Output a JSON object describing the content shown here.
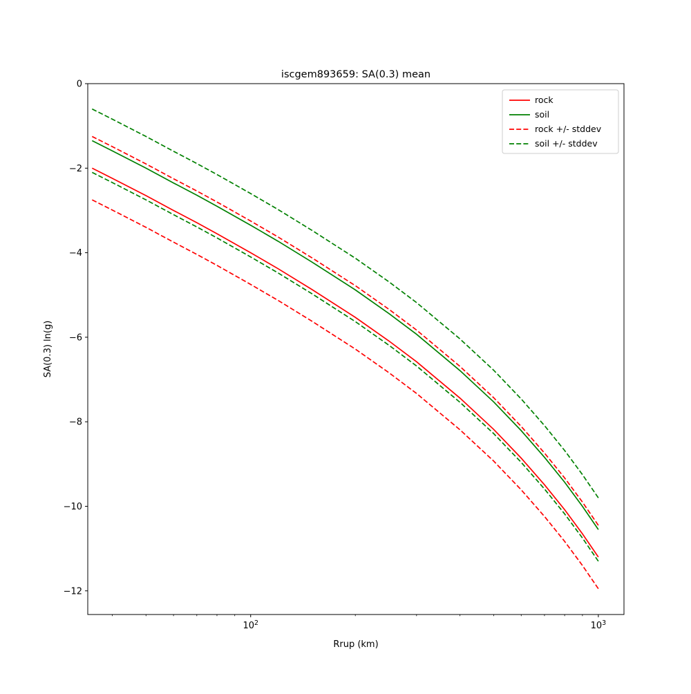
{
  "figure": {
    "title": "iscgem893659: SA(0.3) mean"
  },
  "chart_data": {
    "type": "line",
    "title": "iscgem893659: SA(0.3) mean",
    "xlabel": "Rrup (km)",
    "ylabel": "SA(0.3) ln(g)",
    "x_scale": "log",
    "xlim": [
      34,
      1185
    ],
    "ylim": [
      -12.56,
      0
    ],
    "grid": false,
    "yticks": [
      0,
      -2,
      -4,
      -6,
      -8,
      -10,
      -12
    ],
    "ytick_labels": [
      "0",
      "−2",
      "−4",
      "−6",
      "−8",
      "−10",
      "−12"
    ],
    "xticks": [
      {
        "value": 100,
        "base": "10",
        "exp": "2"
      },
      {
        "value": 1000,
        "base": "10",
        "exp": "3"
      }
    ],
    "x_minor_ticks": [
      40,
      50,
      60,
      70,
      80,
      90,
      200,
      300,
      400,
      500,
      600,
      700,
      800,
      900
    ],
    "x": [
      35,
      40,
      50,
      60,
      70,
      80,
      100,
      120,
      150,
      200,
      250,
      300,
      400,
      500,
      600,
      700,
      800,
      900,
      1000
    ],
    "series": [
      {
        "name": "rock",
        "color": "#ff0000",
        "style": "solid",
        "values": [
          -2.0,
          -2.24,
          -2.65,
          -3.0,
          -3.29,
          -3.55,
          -4.0,
          -4.38,
          -4.87,
          -5.53,
          -6.09,
          -6.58,
          -7.44,
          -8.18,
          -8.86,
          -9.49,
          -10.08,
          -10.65,
          -11.2
        ]
      },
      {
        "name": "soil",
        "color": "#008000",
        "style": "solid",
        "values": [
          -1.35,
          -1.59,
          -2.0,
          -2.35,
          -2.64,
          -2.9,
          -3.35,
          -3.73,
          -4.22,
          -4.88,
          -5.44,
          -5.93,
          -6.79,
          -7.53,
          -8.21,
          -8.84,
          -9.43,
          -10.0,
          -10.55
        ]
      },
      {
        "name": "rock +/- stddev",
        "color": "#ff0000",
        "style": "dashed",
        "values_upper": [
          -1.25,
          -1.49,
          -1.9,
          -2.25,
          -2.54,
          -2.8,
          -3.25,
          -3.63,
          -4.12,
          -4.78,
          -5.34,
          -5.83,
          -6.69,
          -7.43,
          -8.11,
          -8.74,
          -9.33,
          -9.9,
          -10.45
        ],
        "values_lower": [
          -2.75,
          -2.99,
          -3.4,
          -3.75,
          -4.04,
          -4.3,
          -4.75,
          -5.13,
          -5.62,
          -6.28,
          -6.84,
          -7.33,
          -8.19,
          -8.93,
          -9.61,
          -10.24,
          -10.83,
          -11.4,
          -11.95
        ]
      },
      {
        "name": "soil +/- stddev",
        "color": "#008000",
        "style": "dashed",
        "values_upper": [
          -0.6,
          -0.84,
          -1.25,
          -1.6,
          -1.89,
          -2.15,
          -2.6,
          -2.98,
          -3.47,
          -4.13,
          -4.69,
          -5.18,
          -6.04,
          -6.78,
          -7.46,
          -8.09,
          -8.68,
          -9.25,
          -9.8
        ],
        "values_lower": [
          -2.1,
          -2.34,
          -2.75,
          -3.1,
          -3.39,
          -3.65,
          -4.1,
          -4.48,
          -4.97,
          -5.63,
          -6.19,
          -6.68,
          -7.54,
          -8.28,
          -8.96,
          -9.59,
          -10.18,
          -10.75,
          -11.3
        ]
      }
    ],
    "legend": {
      "position": "upper right",
      "entries": [
        {
          "label": "rock",
          "color": "#ff0000",
          "style": "solid"
        },
        {
          "label": "soil",
          "color": "#008000",
          "style": "solid"
        },
        {
          "label": "rock +/- stddev",
          "color": "#ff0000",
          "style": "dashed"
        },
        {
          "label": "soil +/- stddev",
          "color": "#008000",
          "style": "dashed"
        }
      ]
    }
  }
}
